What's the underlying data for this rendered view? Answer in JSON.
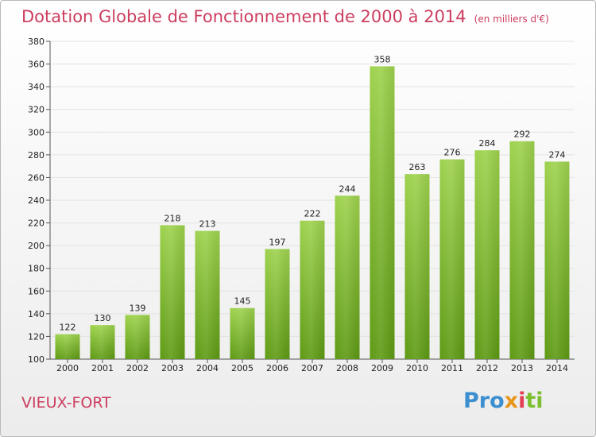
{
  "header": {
    "title": "Dotation Globale de Fonctionnement de 2000 à 2014",
    "subtitle": "(en milliers d'€)"
  },
  "footer": {
    "place": "VIEUX-FORT",
    "logo_parts": [
      "Pro",
      "x",
      "i",
      "ti"
    ]
  },
  "colors": {
    "title": "#cc3d5e",
    "bar_top": "#9ed24e",
    "bar_bottom": "#5e9a14",
    "grid": "#e3e3e3"
  },
  "chart_data": {
    "type": "bar",
    "title": "Dotation Globale de Fonctionnement de 2000 à 2014",
    "subtitle": "(en milliers d'€)",
    "xlabel": "",
    "ylabel": "",
    "categories": [
      "2000",
      "2001",
      "2002",
      "2003",
      "2004",
      "2005",
      "2006",
      "2007",
      "2008",
      "2009",
      "2010",
      "2011",
      "2012",
      "2013",
      "2014"
    ],
    "values": [
      122,
      130,
      139,
      218,
      213,
      145,
      197,
      222,
      244,
      358,
      263,
      276,
      284,
      292,
      274
    ],
    "ylim": [
      100,
      380
    ],
    "yticks": [
      100,
      120,
      140,
      160,
      180,
      200,
      220,
      240,
      260,
      280,
      300,
      320,
      340,
      360,
      380
    ],
    "grid": true,
    "data_labels": true
  }
}
